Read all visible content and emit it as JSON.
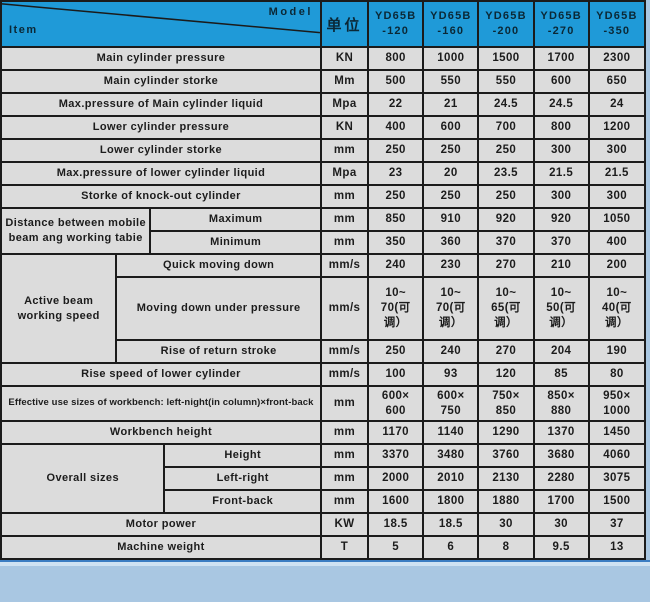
{
  "header": {
    "model_label": "Model",
    "item_label": "Item",
    "unit_label": "单位",
    "models": [
      "YD65B\n-120",
      "YD65B\n-160",
      "YD65B\n-200",
      "YD65B\n-270",
      "YD65B\n-350"
    ]
  },
  "colors": {
    "header_bg": "#1f9ad8",
    "header_text": "#0b2836",
    "row_bg": "#dcdcdc",
    "row_text": "#1c1c1c",
    "border": "#1b1b1b",
    "frame": "#a9c7e2",
    "accent_line": "#3b7dc2",
    "strip_bg": "#cfe2f2"
  },
  "rows": [
    {
      "label": "Main cylinder pressure",
      "unit": "KN",
      "values": [
        "800",
        "1000",
        "1500",
        "1700",
        "2300"
      ]
    },
    {
      "label": "Main cylinder storke",
      "unit": "Mm",
      "values": [
        "500",
        "550",
        "550",
        "600",
        "650"
      ]
    },
    {
      "label": "Max.pressure of Main cylinder liquid",
      "unit": "Mpa",
      "values": [
        "22",
        "21",
        "24.5",
        "24.5",
        "24"
      ]
    },
    {
      "label": "Lower cylinder pressure",
      "unit": "KN",
      "values": [
        "400",
        "600",
        "700",
        "800",
        "1200"
      ]
    },
    {
      "label": "Lower cylinder storke",
      "unit": "mm",
      "values": [
        "250",
        "250",
        "250",
        "300",
        "300"
      ]
    },
    {
      "label": "Max.pressure of lower cylinder liquid",
      "unit": "Mpa",
      "values": [
        "23",
        "20",
        "23.5",
        "21.5",
        "21.5"
      ]
    },
    {
      "label": "Storke of knock-out cylinder",
      "unit": "mm",
      "values": [
        "250",
        "250",
        "250",
        "300",
        "300"
      ]
    },
    {
      "group": "Distance between mobile beam ang working tabie",
      "sub": [
        {
          "label": "Maximum",
          "unit": "mm",
          "values": [
            "850",
            "910",
            "920",
            "920",
            "1050"
          ]
        },
        {
          "label": "Minimum",
          "unit": "mm",
          "values": [
            "350",
            "360",
            "370",
            "370",
            "400"
          ]
        }
      ]
    },
    {
      "group": "Active beam working speed",
      "sub": [
        {
          "label": "Quick moving down",
          "unit": "mm/s",
          "values": [
            "240",
            "230",
            "270",
            "210",
            "200"
          ]
        },
        {
          "label": "Moving down under pressure",
          "unit": "mm/s",
          "values": [
            "10~\n70(可\n调）",
            "10~\n70(可\n调）",
            "10~\n65(可\n调）",
            "10~\n50(可\n调）",
            "10~\n40(可\n调）"
          ]
        },
        {
          "label": "Rise of return stroke",
          "unit": "mm/s",
          "values": [
            "250",
            "240",
            "270",
            "204",
            "190"
          ]
        }
      ]
    },
    {
      "label": "Rise speed of lower cylinder",
      "unit": "mm/s",
      "values": [
        "100",
        "93",
        "120",
        "85",
        "80"
      ]
    },
    {
      "label": "Effective use sizes of workbench: left-night(in column)×front-back",
      "unit": "mm",
      "values": [
        "600×\n600",
        "600×\n750",
        "750×\n850",
        "850×\n880",
        "950×\n1000"
      ]
    },
    {
      "label": "Workbench height",
      "unit": "mm",
      "values": [
        "1170",
        "1140",
        "1290",
        "1370",
        "1450"
      ]
    },
    {
      "group": "Overall sizes",
      "sub": [
        {
          "label": "Height",
          "unit": "mm",
          "values": [
            "3370",
            "3480",
            "3760",
            "3680",
            "4060"
          ]
        },
        {
          "label": "Left-right",
          "unit": "mm",
          "values": [
            "2000",
            "2010",
            "2130",
            "2280",
            "3075"
          ]
        },
        {
          "label": "Front-back",
          "unit": "mm",
          "values": [
            "1600",
            "1800",
            "1880",
            "1700",
            "1500"
          ]
        }
      ]
    },
    {
      "label": "Motor power",
      "unit": "KW",
      "values": [
        "18.5",
        "18.5",
        "30",
        "30",
        "37"
      ]
    },
    {
      "label": "Machine weight",
      "unit": "T",
      "values": [
        "5",
        "6",
        "8",
        "9.5",
        "13"
      ]
    }
  ]
}
